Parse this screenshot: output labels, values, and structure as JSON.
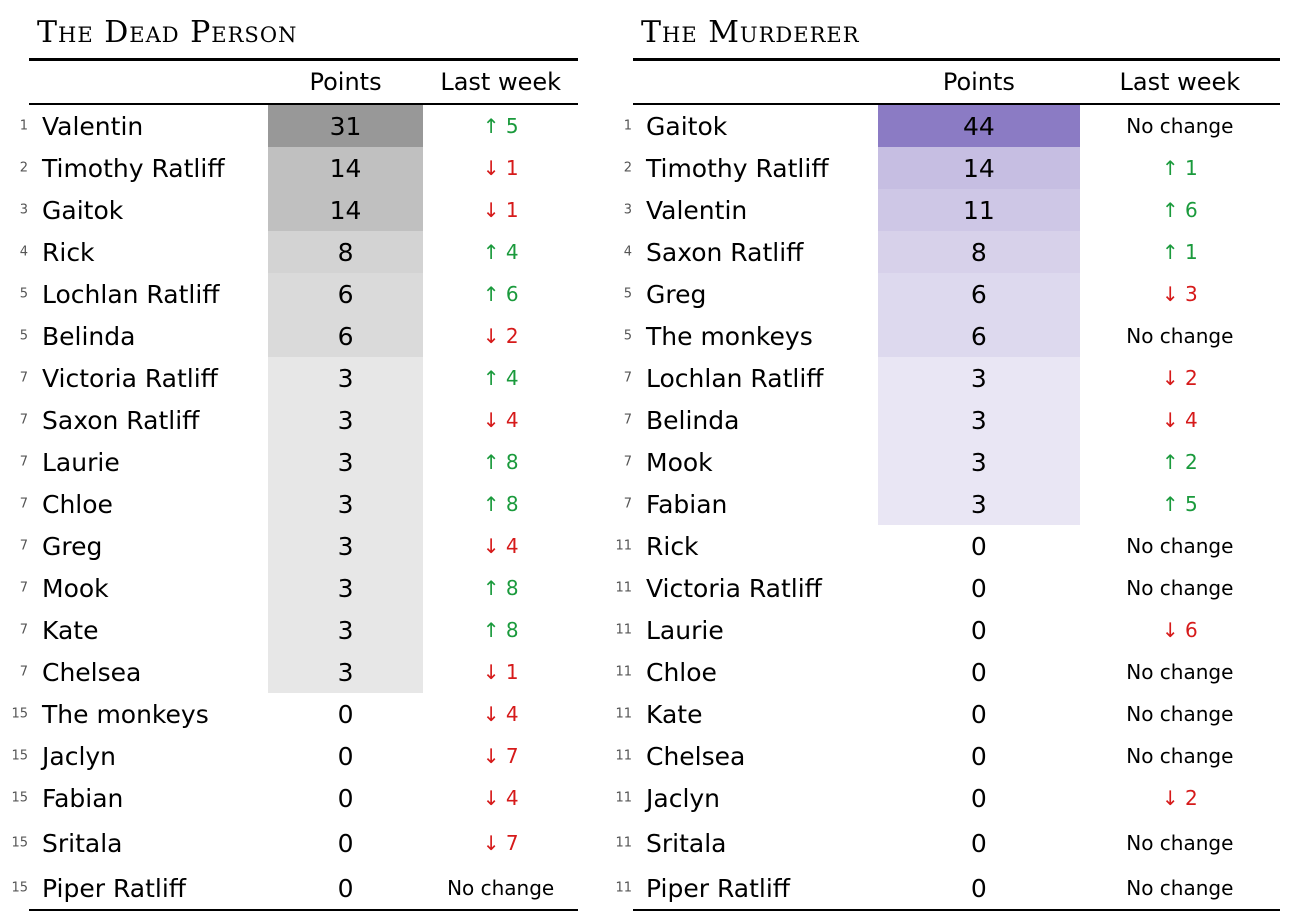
{
  "headers": {
    "points": "Points",
    "last_week": "Last week"
  },
  "boards": [
    {
      "title": "The Dead Person",
      "palette": {
        "high": "#989898",
        "base": "#ffffff",
        "max": 31
      },
      "rows": [
        {
          "rank": "1",
          "name": "Valentin",
          "points": 31,
          "dir": "up",
          "change": "↑ 5"
        },
        {
          "rank": "2",
          "name": "Timothy Ratliff",
          "points": 14,
          "dir": "down",
          "change": "↓ 1"
        },
        {
          "rank": "3",
          "name": "Gaitok",
          "points": 14,
          "dir": "down",
          "change": "↓ 1"
        },
        {
          "rank": "4",
          "name": "Rick",
          "points": 8,
          "dir": "up",
          "change": "↑ 4"
        },
        {
          "rank": "5",
          "name": "Lochlan Ratliff",
          "points": 6,
          "dir": "up",
          "change": "↑ 6"
        },
        {
          "rank": "5",
          "name": "Belinda",
          "points": 6,
          "dir": "down",
          "change": "↓ 2"
        },
        {
          "rank": "7",
          "name": "Victoria Ratliff",
          "points": 3,
          "dir": "up",
          "change": "↑ 4"
        },
        {
          "rank": "7",
          "name": "Saxon Ratliff",
          "points": 3,
          "dir": "down",
          "change": "↓ 4"
        },
        {
          "rank": "7",
          "name": "Laurie",
          "points": 3,
          "dir": "up",
          "change": "↑ 8"
        },
        {
          "rank": "7",
          "name": "Chloe",
          "points": 3,
          "dir": "up",
          "change": "↑ 8"
        },
        {
          "rank": "7",
          "name": "Greg",
          "points": 3,
          "dir": "down",
          "change": "↓ 4"
        },
        {
          "rank": "7",
          "name": "Mook",
          "points": 3,
          "dir": "up",
          "change": "↑ 8"
        },
        {
          "rank": "7",
          "name": "Kate",
          "points": 3,
          "dir": "up",
          "change": "↑ 8"
        },
        {
          "rank": "7",
          "name": "Chelsea",
          "points": 3,
          "dir": "down",
          "change": "↓ 1"
        },
        {
          "rank": "15",
          "name": "The monkeys",
          "points": 0,
          "dir": "down",
          "change": "↓ 4"
        },
        {
          "rank": "15",
          "name": "Jaclyn",
          "points": 0,
          "dir": "down",
          "change": "↓ 7"
        },
        {
          "rank": "15",
          "name": "Fabian",
          "points": 0,
          "dir": "down",
          "change": "↓ 4"
        },
        {
          "rank": "15",
          "name": "Sritala",
          "points": 0,
          "dir": "down",
          "change": "↓ 7"
        },
        {
          "rank": "15",
          "name": "Piper Ratliff",
          "points": 0,
          "dir": "none",
          "change": "No change"
        }
      ]
    },
    {
      "title": "The Murderer",
      "palette": {
        "high": "#8b7bc4",
        "base": "#ffffff",
        "max": 44
      },
      "rows": [
        {
          "rank": "1",
          "name": "Gaitok",
          "points": 44,
          "dir": "none",
          "change": "No change"
        },
        {
          "rank": "2",
          "name": "Timothy Ratliff",
          "points": 14,
          "dir": "up",
          "change": "↑ 1"
        },
        {
          "rank": "3",
          "name": "Valentin",
          "points": 11,
          "dir": "up",
          "change": "↑ 6"
        },
        {
          "rank": "4",
          "name": "Saxon Ratliff",
          "points": 8,
          "dir": "up",
          "change": "↑ 1"
        },
        {
          "rank": "5",
          "name": "Greg",
          "points": 6,
          "dir": "down",
          "change": "↓ 3"
        },
        {
          "rank": "5",
          "name": "The monkeys",
          "points": 6,
          "dir": "none",
          "change": "No change"
        },
        {
          "rank": "7",
          "name": "Lochlan Ratliff",
          "points": 3,
          "dir": "down",
          "change": "↓ 2"
        },
        {
          "rank": "7",
          "name": "Belinda",
          "points": 3,
          "dir": "down",
          "change": "↓ 4"
        },
        {
          "rank": "7",
          "name": "Mook",
          "points": 3,
          "dir": "up",
          "change": "↑ 2"
        },
        {
          "rank": "7",
          "name": "Fabian",
          "points": 3,
          "dir": "up",
          "change": "↑ 5"
        },
        {
          "rank": "11",
          "name": "Rick",
          "points": 0,
          "dir": "none",
          "change": "No change"
        },
        {
          "rank": "11",
          "name": "Victoria Ratliff",
          "points": 0,
          "dir": "none",
          "change": "No change"
        },
        {
          "rank": "11",
          "name": "Laurie",
          "points": 0,
          "dir": "down",
          "change": "↓ 6"
        },
        {
          "rank": "11",
          "name": "Chloe",
          "points": 0,
          "dir": "none",
          "change": "No change"
        },
        {
          "rank": "11",
          "name": "Kate",
          "points": 0,
          "dir": "none",
          "change": "No change"
        },
        {
          "rank": "11",
          "name": "Chelsea",
          "points": 0,
          "dir": "none",
          "change": "No change"
        },
        {
          "rank": "11",
          "name": "Jaclyn",
          "points": 0,
          "dir": "down",
          "change": "↓ 2"
        },
        {
          "rank": "11",
          "name": "Sritala",
          "points": 0,
          "dir": "none",
          "change": "No change"
        },
        {
          "rank": "11",
          "name": "Piper Ratliff",
          "points": 0,
          "dir": "none",
          "change": "No change"
        }
      ]
    }
  ]
}
